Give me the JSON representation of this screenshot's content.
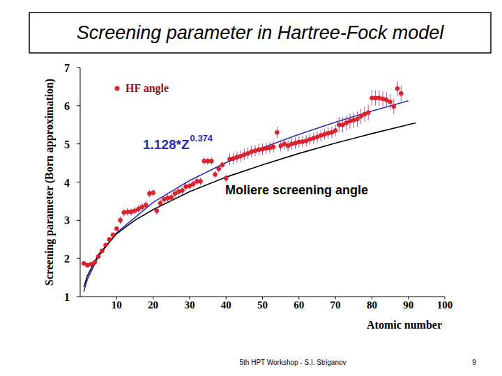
{
  "chart_data": {
    "type": "scatter",
    "title": "Screening parameter in Hartree-Fock model",
    "x_label": "Atomic number",
    "y_label": "Screening parameter (Born approximation)",
    "footer": "5th HPT Workshop  -  S.I. Striganov",
    "page_number": "9",
    "xlim": [
      0,
      100
    ],
    "xticks": [
      10,
      20,
      30,
      40,
      50,
      60,
      70,
      80,
      90,
      100
    ],
    "ylim": [
      1,
      7
    ],
    "yticks": [
      1,
      2,
      3,
      4,
      5,
      6,
      7
    ],
    "grid": false,
    "legend": "top-left",
    "series": [
      {
        "name": "HF angle",
        "type": "scatter",
        "marker": "circle",
        "color": "#e8202a",
        "x": [
          1,
          2,
          3,
          4,
          5,
          6,
          7,
          8,
          9,
          10,
          11,
          12,
          13,
          14,
          15,
          16,
          17,
          18,
          19,
          20,
          21,
          22,
          23,
          24,
          25,
          26,
          27,
          28,
          29,
          30,
          31,
          32,
          33,
          34,
          35,
          36,
          37,
          38,
          39,
          40,
          41,
          42,
          43,
          44,
          45,
          46,
          47,
          48,
          49,
          50,
          51,
          52,
          53,
          54,
          55,
          56,
          57,
          58,
          59,
          60,
          61,
          62,
          63,
          64,
          65,
          66,
          67,
          68,
          69,
          70,
          71,
          72,
          73,
          74,
          75,
          76,
          77,
          78,
          79,
          80,
          81,
          82,
          83,
          84,
          85,
          86,
          87,
          88
        ],
        "values": [
          1.87,
          1.82,
          1.85,
          1.9,
          2.05,
          2.2,
          2.35,
          2.5,
          2.62,
          2.78,
          3.0,
          3.2,
          3.22,
          3.22,
          3.25,
          3.3,
          3.35,
          3.4,
          3.7,
          3.72,
          3.25,
          3.45,
          3.55,
          3.58,
          3.6,
          3.7,
          3.75,
          3.78,
          3.88,
          3.9,
          3.95,
          4.02,
          4.02,
          4.55,
          4.55,
          4.55,
          4.2,
          4.35,
          4.45,
          4.1,
          4.6,
          4.62,
          4.65,
          4.68,
          4.72,
          4.75,
          4.8,
          4.82,
          4.85,
          4.86,
          4.88,
          4.9,
          4.92,
          5.3,
          4.95,
          5.0,
          4.95,
          5.0,
          5.02,
          5.05,
          5.06,
          5.08,
          5.12,
          5.15,
          5.18,
          5.22,
          5.25,
          5.28,
          5.3,
          5.35,
          5.5,
          5.5,
          5.55,
          5.6,
          5.62,
          5.65,
          5.72,
          5.78,
          5.82,
          6.2,
          6.2,
          6.2,
          6.18,
          6.15,
          6.1,
          5.98,
          6.45,
          6.32
        ],
        "errors": [
          0.05,
          0.05,
          0.05,
          0.05,
          0.05,
          0.05,
          0.05,
          0.05,
          0.05,
          0.05,
          0.1,
          0.1,
          0.1,
          0.1,
          0.1,
          0.1,
          0.1,
          0.1,
          0.1,
          0.1,
          0.1,
          0.1,
          0.1,
          0.1,
          0.1,
          0.1,
          0.1,
          0.1,
          0.1,
          0.1,
          0.1,
          0.1,
          0.1,
          0.1,
          0.1,
          0.1,
          0.1,
          0.1,
          0.1,
          0.1,
          0.15,
          0.15,
          0.15,
          0.15,
          0.15,
          0.15,
          0.15,
          0.15,
          0.15,
          0.15,
          0.15,
          0.15,
          0.15,
          0.15,
          0.15,
          0.15,
          0.15,
          0.15,
          0.15,
          0.15,
          0.15,
          0.15,
          0.15,
          0.15,
          0.15,
          0.15,
          0.15,
          0.15,
          0.15,
          0.15,
          0.2,
          0.2,
          0.2,
          0.2,
          0.2,
          0.2,
          0.2,
          0.2,
          0.2,
          0.2,
          0.2,
          0.2,
          0.2,
          0.2,
          0.2,
          0.2,
          0.2,
          0.2
        ]
      },
      {
        "name": "1.128*Z",
        "name_superscript": "0.374",
        "type": "line",
        "line_style": "solid",
        "color": "#2b2bb8",
        "x": [
          1,
          2,
          5,
          10,
          20,
          30,
          40,
          50,
          60,
          70,
          80,
          90
        ],
        "values": [
          1.13,
          1.46,
          2.05,
          2.67,
          3.47,
          4.04,
          4.51,
          4.9,
          5.25,
          5.57,
          5.86,
          6.13
        ]
      },
      {
        "name": "Moliere screening angle",
        "type": "line",
        "line_style": "solid",
        "color": "#000000",
        "x": [
          1,
          2,
          5,
          10,
          15,
          20,
          30,
          40,
          50,
          60,
          70,
          80,
          92
        ],
        "values": [
          1.25,
          1.55,
          2.1,
          2.65,
          3.0,
          3.28,
          3.75,
          4.13,
          4.45,
          4.75,
          5.02,
          5.27,
          5.55
        ]
      }
    ]
  }
}
